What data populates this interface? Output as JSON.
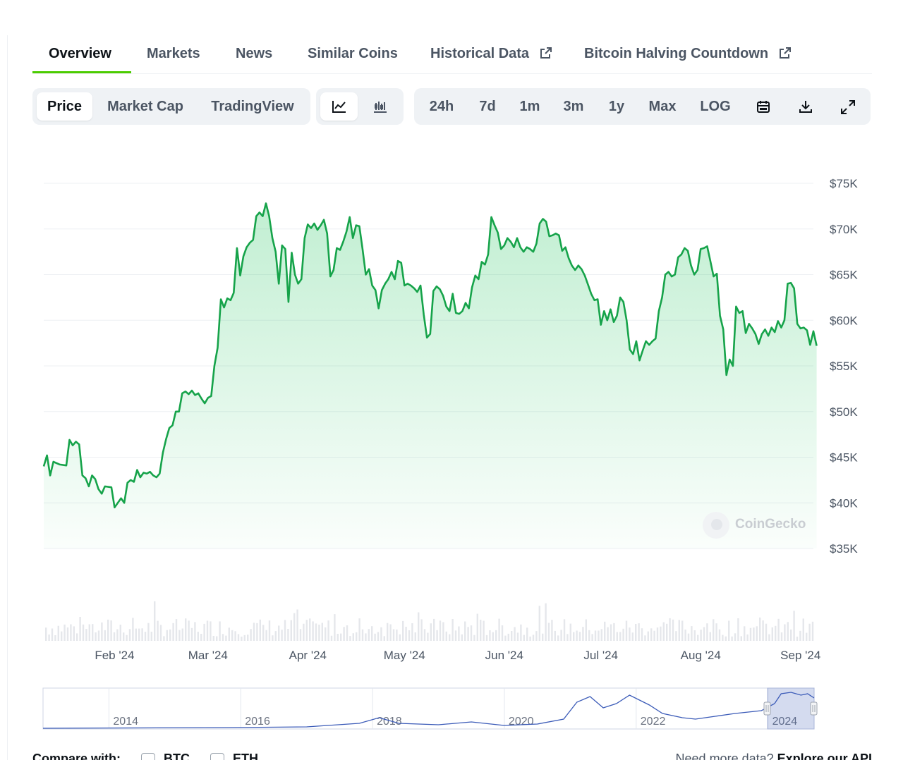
{
  "tabs": [
    {
      "label": "Overview"
    },
    {
      "label": "Markets"
    },
    {
      "label": "News"
    },
    {
      "label": "Similar Coins"
    },
    {
      "label": "Historical Data"
    },
    {
      "label": "Bitcoin Halving Countdown"
    }
  ],
  "toolbar": {
    "metrics": [
      {
        "label": "Price"
      },
      {
        "label": "Market Cap"
      },
      {
        "label": "TradingView"
      }
    ],
    "chart_types": [
      {
        "icon": "line-chart-icon"
      },
      {
        "icon": "candlestick-chart-icon"
      }
    ],
    "ranges": [
      {
        "label": "24h"
      },
      {
        "label": "7d"
      },
      {
        "label": "1m"
      },
      {
        "label": "3m"
      },
      {
        "label": "1y"
      },
      {
        "label": "Max"
      },
      {
        "label": "LOG"
      }
    ],
    "actions": [
      {
        "icon": "calendar-icon"
      },
      {
        "icon": "download-icon"
      },
      {
        "icon": "expand-icon"
      }
    ],
    "active_metric": "Price",
    "active_chart_type": "line-chart-icon"
  },
  "colors": {
    "line": "#16a34a",
    "fill": "#22c55e",
    "navigator_line": "#3b5bb8",
    "volume": "#e5e7eb"
  },
  "watermark": {
    "text": "CoinGecko"
  },
  "chart_data": {
    "type": "line",
    "ylim": [
      35000,
      75000
    ],
    "y_ticks": [
      {
        "v": 75000,
        "label": "$75K"
      },
      {
        "v": 70000,
        "label": "$70K"
      },
      {
        "v": 65000,
        "label": "$65K"
      },
      {
        "v": 60000,
        "label": "$60K"
      },
      {
        "v": 55000,
        "label": "$55K"
      },
      {
        "v": 50000,
        "label": "$50K"
      },
      {
        "v": 45000,
        "label": "$45K"
      },
      {
        "v": 40000,
        "label": "$40K"
      },
      {
        "v": 35000,
        "label": "$35K"
      }
    ],
    "x_start": "2024-01-10",
    "x_end": "2024-09-05",
    "x_ticks": [
      {
        "date": "2024-02-01",
        "label": "Feb '24"
      },
      {
        "date": "2024-03-01",
        "label": "Mar '24"
      },
      {
        "date": "2024-04-01",
        "label": "Apr '24"
      },
      {
        "date": "2024-05-01",
        "label": "May '24"
      },
      {
        "date": "2024-06-01",
        "label": "Jun '24"
      },
      {
        "date": "2024-07-01",
        "label": "Jul '24"
      },
      {
        "date": "2024-08-01",
        "label": "Aug '24"
      },
      {
        "date": "2024-09-01",
        "label": "Sep '24"
      }
    ],
    "series": [
      {
        "points": [
          [
            "2024-01-10",
            44000
          ],
          [
            "2024-01-11",
            45200
          ],
          [
            "2024-01-12",
            43000
          ],
          [
            "2024-01-13",
            44500
          ],
          [
            "2024-01-15",
            44200
          ],
          [
            "2024-01-17",
            44100
          ],
          [
            "2024-01-18",
            46900
          ],
          [
            "2024-01-19",
            46300
          ],
          [
            "2024-01-20",
            46700
          ],
          [
            "2024-01-21",
            46400
          ],
          [
            "2024-01-22",
            43000
          ],
          [
            "2024-01-23",
            42700
          ],
          [
            "2024-01-24",
            41800
          ],
          [
            "2024-01-25",
            43000
          ],
          [
            "2024-01-26",
            42600
          ],
          [
            "2024-01-27",
            41500
          ],
          [
            "2024-01-28",
            41000
          ],
          [
            "2024-01-29",
            41800
          ],
          [
            "2024-01-31",
            41700
          ],
          [
            "2024-02-01",
            39500
          ],
          [
            "2024-02-02",
            40000
          ],
          [
            "2024-02-03",
            40500
          ],
          [
            "2024-02-04",
            40000
          ],
          [
            "2024-02-05",
            42200
          ],
          [
            "2024-02-06",
            42500
          ],
          [
            "2024-02-07",
            42300
          ],
          [
            "2024-02-08",
            43600
          ],
          [
            "2024-02-09",
            42800
          ],
          [
            "2024-02-10",
            43300
          ],
          [
            "2024-02-11",
            43200
          ],
          [
            "2024-02-12",
            43400
          ],
          [
            "2024-02-13",
            43000
          ],
          [
            "2024-02-14",
            42800
          ],
          [
            "2024-02-15",
            43200
          ],
          [
            "2024-02-16",
            45500
          ],
          [
            "2024-02-17",
            47000
          ],
          [
            "2024-02-18",
            48200
          ],
          [
            "2024-02-19",
            48500
          ],
          [
            "2024-02-20",
            50000
          ],
          [
            "2024-02-21",
            50000
          ],
          [
            "2024-02-22",
            52000
          ],
          [
            "2024-02-23",
            52200
          ],
          [
            "2024-02-24",
            51900
          ],
          [
            "2024-02-25",
            52300
          ],
          [
            "2024-02-26",
            51800
          ],
          [
            "2024-02-27",
            52000
          ],
          [
            "2024-02-28",
            51400
          ],
          [
            "2024-02-29",
            50900
          ],
          [
            "2024-03-01",
            51500
          ],
          [
            "2024-03-02",
            51700
          ],
          [
            "2024-03-03",
            55000
          ],
          [
            "2024-03-04",
            57000
          ],
          [
            "2024-03-05",
            62300
          ],
          [
            "2024-03-06",
            61400
          ],
          [
            "2024-03-07",
            62400
          ],
          [
            "2024-03-08",
            62200
          ],
          [
            "2024-03-09",
            63000
          ],
          [
            "2024-03-10",
            67900
          ],
          [
            "2024-03-11",
            64900
          ],
          [
            "2024-03-12",
            67000
          ],
          [
            "2024-03-13",
            68000
          ],
          [
            "2024-03-14",
            68500
          ],
          [
            "2024-03-15",
            68800
          ],
          [
            "2024-03-16",
            71400
          ],
          [
            "2024-03-17",
            71800
          ],
          [
            "2024-03-18",
            71400
          ],
          [
            "2024-03-19",
            72800
          ],
          [
            "2024-03-20",
            71400
          ],
          [
            "2024-03-21",
            69000
          ],
          [
            "2024-03-22",
            67500
          ],
          [
            "2024-03-23",
            64000
          ],
          [
            "2024-03-24",
            68200
          ],
          [
            "2024-03-25",
            67800
          ],
          [
            "2024-03-26",
            62000
          ],
          [
            "2024-03-27",
            67400
          ],
          [
            "2024-03-28",
            65000
          ],
          [
            "2024-03-29",
            64000
          ],
          [
            "2024-03-30",
            64500
          ],
          [
            "2024-03-31",
            69000
          ],
          [
            "2024-04-01",
            70500
          ],
          [
            "2024-04-02",
            70100
          ],
          [
            "2024-04-03",
            70600
          ],
          [
            "2024-04-04",
            69900
          ],
          [
            "2024-04-05",
            70400
          ],
          [
            "2024-04-06",
            71000
          ],
          [
            "2024-04-07",
            69500
          ],
          [
            "2024-04-08",
            64800
          ],
          [
            "2024-04-09",
            65500
          ],
          [
            "2024-04-10",
            67900
          ],
          [
            "2024-04-11",
            67700
          ],
          [
            "2024-04-12",
            68600
          ],
          [
            "2024-04-13",
            69700
          ],
          [
            "2024-04-14",
            71300
          ],
          [
            "2024-04-15",
            69000
          ],
          [
            "2024-04-16",
            70400
          ],
          [
            "2024-04-17",
            70300
          ],
          [
            "2024-04-18",
            67800
          ],
          [
            "2024-04-19",
            65000
          ],
          [
            "2024-04-20",
            65600
          ],
          [
            "2024-04-21",
            63800
          ],
          [
            "2024-04-22",
            63300
          ],
          [
            "2024-04-23",
            61300
          ],
          [
            "2024-04-24",
            63300
          ],
          [
            "2024-04-25",
            64000
          ],
          [
            "2024-04-26",
            64500
          ],
          [
            "2024-04-27",
            65300
          ],
          [
            "2024-04-28",
            64500
          ],
          [
            "2024-04-29",
            66500
          ],
          [
            "2024-04-30",
            66300
          ],
          [
            "2024-05-01",
            63800
          ],
          [
            "2024-05-02",
            64000
          ],
          [
            "2024-05-03",
            63800
          ],
          [
            "2024-05-04",
            63500
          ],
          [
            "2024-05-05",
            63100
          ],
          [
            "2024-05-06",
            63800
          ],
          [
            "2024-05-07",
            60600
          ],
          [
            "2024-05-08",
            58100
          ],
          [
            "2024-05-09",
            58500
          ],
          [
            "2024-05-10",
            63200
          ],
          [
            "2024-05-11",
            63700
          ],
          [
            "2024-05-12",
            63400
          ],
          [
            "2024-05-13",
            62700
          ],
          [
            "2024-05-14",
            61500
          ],
          [
            "2024-05-15",
            61000
          ],
          [
            "2024-05-16",
            62900
          ],
          [
            "2024-05-17",
            60800
          ],
          [
            "2024-05-18",
            60700
          ],
          [
            "2024-05-19",
            61000
          ],
          [
            "2024-05-20",
            61900
          ],
          [
            "2024-05-21",
            61300
          ],
          [
            "2024-05-22",
            63600
          ],
          [
            "2024-05-23",
            64900
          ],
          [
            "2024-05-24",
            64500
          ],
          [
            "2024-05-25",
            66400
          ],
          [
            "2024-05-26",
            66100
          ],
          [
            "2024-05-27",
            67200
          ],
          [
            "2024-05-28",
            71300
          ],
          [
            "2024-05-29",
            70400
          ],
          [
            "2024-05-30",
            69600
          ],
          [
            "2024-05-31",
            67800
          ],
          [
            "2024-06-01",
            68200
          ],
          [
            "2024-06-02",
            69000
          ],
          [
            "2024-06-03",
            68600
          ],
          [
            "2024-06-04",
            68000
          ],
          [
            "2024-06-05",
            69000
          ],
          [
            "2024-06-06",
            68000
          ],
          [
            "2024-06-07",
            67500
          ],
          [
            "2024-06-08",
            68000
          ],
          [
            "2024-06-09",
            67800
          ],
          [
            "2024-06-10",
            67500
          ],
          [
            "2024-06-11",
            68400
          ],
          [
            "2024-06-12",
            70600
          ],
          [
            "2024-06-13",
            71100
          ],
          [
            "2024-06-14",
            70800
          ],
          [
            "2024-06-15",
            69200
          ],
          [
            "2024-06-16",
            69300
          ],
          [
            "2024-06-17",
            69500
          ],
          [
            "2024-06-18",
            69300
          ],
          [
            "2024-06-19",
            67600
          ],
          [
            "2024-06-20",
            68000
          ],
          [
            "2024-06-21",
            66800
          ],
          [
            "2024-06-22",
            66000
          ],
          [
            "2024-06-23",
            65500
          ],
          [
            "2024-06-24",
            66000
          ],
          [
            "2024-06-25",
            65600
          ],
          [
            "2024-06-26",
            64900
          ],
          [
            "2024-06-27",
            63900
          ],
          [
            "2024-06-28",
            62900
          ],
          [
            "2024-06-29",
            62200
          ],
          [
            "2024-06-30",
            62300
          ],
          [
            "2024-07-01",
            59500
          ],
          [
            "2024-07-02",
            61000
          ],
          [
            "2024-07-03",
            60000
          ],
          [
            "2024-07-04",
            61200
          ],
          [
            "2024-07-05",
            59800
          ],
          [
            "2024-07-06",
            60500
          ],
          [
            "2024-07-07",
            62500
          ],
          [
            "2024-07-08",
            62000
          ],
          [
            "2024-07-09",
            60000
          ],
          [
            "2024-07-10",
            56800
          ],
          [
            "2024-07-11",
            56300
          ],
          [
            "2024-07-12",
            57700
          ],
          [
            "2024-07-13",
            55600
          ],
          [
            "2024-07-14",
            56700
          ],
          [
            "2024-07-15",
            57700
          ],
          [
            "2024-07-16",
            57300
          ],
          [
            "2024-07-17",
            57700
          ],
          [
            "2024-07-18",
            58000
          ],
          [
            "2024-07-19",
            61000
          ],
          [
            "2024-07-20",
            62500
          ],
          [
            "2024-07-21",
            65000
          ],
          [
            "2024-07-22",
            65300
          ],
          [
            "2024-07-23",
            64800
          ],
          [
            "2024-07-24",
            65000
          ],
          [
            "2024-07-25",
            66900
          ],
          [
            "2024-07-26",
            67200
          ],
          [
            "2024-07-27",
            67900
          ],
          [
            "2024-07-28",
            67600
          ],
          [
            "2024-07-29",
            66000
          ],
          [
            "2024-07-30",
            65000
          ],
          [
            "2024-07-31",
            65500
          ],
          [
            "2024-08-01",
            67800
          ],
          [
            "2024-08-02",
            67900
          ],
          [
            "2024-08-03",
            68100
          ],
          [
            "2024-08-04",
            66500
          ],
          [
            "2024-08-05",
            64800
          ],
          [
            "2024-08-06",
            65100
          ],
          [
            "2024-08-07",
            60500
          ],
          [
            "2024-08-08",
            59000
          ],
          [
            "2024-08-09",
            54000
          ],
          [
            "2024-08-10",
            55700
          ],
          [
            "2024-08-11",
            55000
          ],
          [
            "2024-08-12",
            61500
          ],
          [
            "2024-08-13",
            60800
          ],
          [
            "2024-08-14",
            61000
          ],
          [
            "2024-08-15",
            58600
          ],
          [
            "2024-08-16",
            59600
          ],
          [
            "2024-08-17",
            59100
          ],
          [
            "2024-08-18",
            58500
          ],
          [
            "2024-08-19",
            57400
          ],
          [
            "2024-08-20",
            58500
          ],
          [
            "2024-08-21",
            59000
          ],
          [
            "2024-08-22",
            58300
          ],
          [
            "2024-08-23",
            59200
          ],
          [
            "2024-08-24",
            58700
          ],
          [
            "2024-08-25",
            59900
          ],
          [
            "2024-08-26",
            59200
          ],
          [
            "2024-08-27",
            60000
          ],
          [
            "2024-08-28",
            64000
          ],
          [
            "2024-08-29",
            64100
          ],
          [
            "2024-08-30",
            63500
          ],
          [
            "2024-08-31",
            59600
          ],
          [
            "2024-09-01",
            59100
          ],
          [
            "2024-09-02",
            59200
          ],
          [
            "2024-09-03",
            58900
          ],
          [
            "2024-09-04",
            57300
          ],
          [
            "2024-09-05",
            58800
          ],
          [
            "2024-09-06",
            57200
          ]
        ]
      }
    ],
    "navigator": {
      "x_ticks": [
        {
          "year": 2014,
          "label": "2014"
        },
        {
          "year": 2016,
          "label": "2016"
        },
        {
          "year": 2018,
          "label": "2018"
        },
        {
          "year": 2020,
          "label": "2020"
        },
        {
          "year": 2022,
          "label": "2022"
        },
        {
          "year": 2024,
          "label": "2024"
        }
      ]
    }
  },
  "footer": {
    "compare_label": "Compare with:",
    "compare_options": [
      {
        "label": "BTC"
      },
      {
        "label": "ETH"
      }
    ],
    "api_text": "Need more data?",
    "api_link": "Explore our API"
  }
}
